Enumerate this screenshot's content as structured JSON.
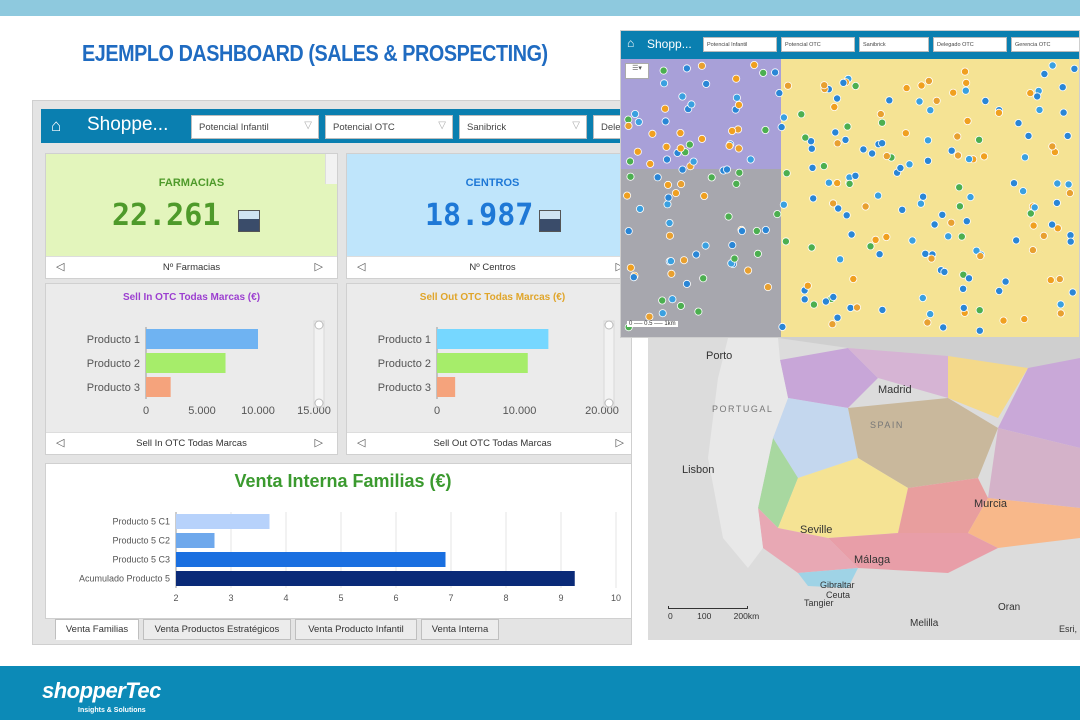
{
  "slide": {
    "title": "EJEMPLO DASHBOARD (SALES & PROSPECTING)",
    "footer_logo": "shopperTec",
    "footer_sub": "Insights & Solutions"
  },
  "colors": {
    "header": "#0a7fb0",
    "title_blue": "#1f6bc1",
    "footer": "#0c8ab7",
    "farmacias_bg": "#e3f5bc",
    "centros_bg": "#bfe5fb",
    "green_value": "#4e9a2a",
    "blue_value": "#1e78d6"
  },
  "dashboard": {
    "app_name": "Shoppe...",
    "filters": [
      "Potencial Infantil",
      "Potencial OTC",
      "Sanibrick",
      "Dele"
    ],
    "kpis": [
      {
        "title": "FARMACIAS",
        "value": "22.261",
        "nav_label": "Nº Farmacias",
        "icon": "pharmacy-icon"
      },
      {
        "title": "CENTROS",
        "value": "18.987",
        "nav_label": "Nº Centros",
        "icon": "clinic-icon"
      }
    ],
    "tabs": [
      "Venta Familias",
      "Venta Productos Estratégicos",
      "Venta Producto Infantil",
      "Venta Interna"
    ]
  },
  "chart_data": [
    {
      "type": "bar",
      "orientation": "horizontal",
      "title": "Sell In OTC Todas Marcas (€)",
      "nav_label": "Sell In OTC Todas Marcas",
      "categories": [
        "Producto 1",
        "Producto 2",
        "Producto 3"
      ],
      "values": [
        10000,
        7100,
        2200
      ],
      "colors": [
        "#6fb3f2",
        "#a6ed6a",
        "#f5a37c"
      ],
      "xlim": [
        0,
        15000
      ],
      "xticks": [
        "0",
        "5.000",
        "10.000",
        "15.000"
      ]
    },
    {
      "type": "bar",
      "orientation": "horizontal",
      "title": "Sell Out OTC Todas Marcas (€)",
      "nav_label": "Sell Out OTC Todas Marcas",
      "categories": [
        "Producto 1",
        "Producto 2",
        "Producto 3"
      ],
      "values": [
        13500,
        11000,
        2200
      ],
      "colors": [
        "#76d7ff",
        "#a6ed6a",
        "#f5a37c"
      ],
      "xlim": [
        0,
        20000
      ],
      "xticks": [
        "0",
        "10.000",
        "20.000"
      ]
    },
    {
      "type": "bar",
      "orientation": "horizontal",
      "title": "Venta Interna Familias (€)",
      "categories": [
        "Producto 5 C1",
        "Producto 5 C2",
        "Producto 5 C3",
        "Acumulado Producto 5"
      ],
      "values": [
        3.7,
        2.7,
        6.9,
        9.25
      ],
      "colors": [
        "#b7d2fb",
        "#6ea8ec",
        "#1a6fe0",
        "#0a2a78"
      ],
      "xlim": [
        2,
        10
      ],
      "xticks": [
        "2",
        "3",
        "4",
        "5",
        "6",
        "7",
        "8",
        "9",
        "10"
      ],
      "grid": true
    }
  ],
  "city_map": {
    "app_name": "Shopp...",
    "filters": [
      "Potencial Infantil",
      "Potencial OTC",
      "Sanibrick",
      "Delegado OTC",
      "Gerencia OTC"
    ]
  },
  "spain_map": {
    "labels": [
      "Porto",
      "Madrid",
      "PORTUGAL",
      "SPAIN",
      "Lisbon",
      "Murcia",
      "Seville",
      "Málaga",
      "Gibraltar",
      "Ceuta",
      "Tangier",
      "Oran",
      "Melilla"
    ],
    "scale": [
      "0",
      "100",
      "200km"
    ],
    "attribution": "Esri, H"
  }
}
